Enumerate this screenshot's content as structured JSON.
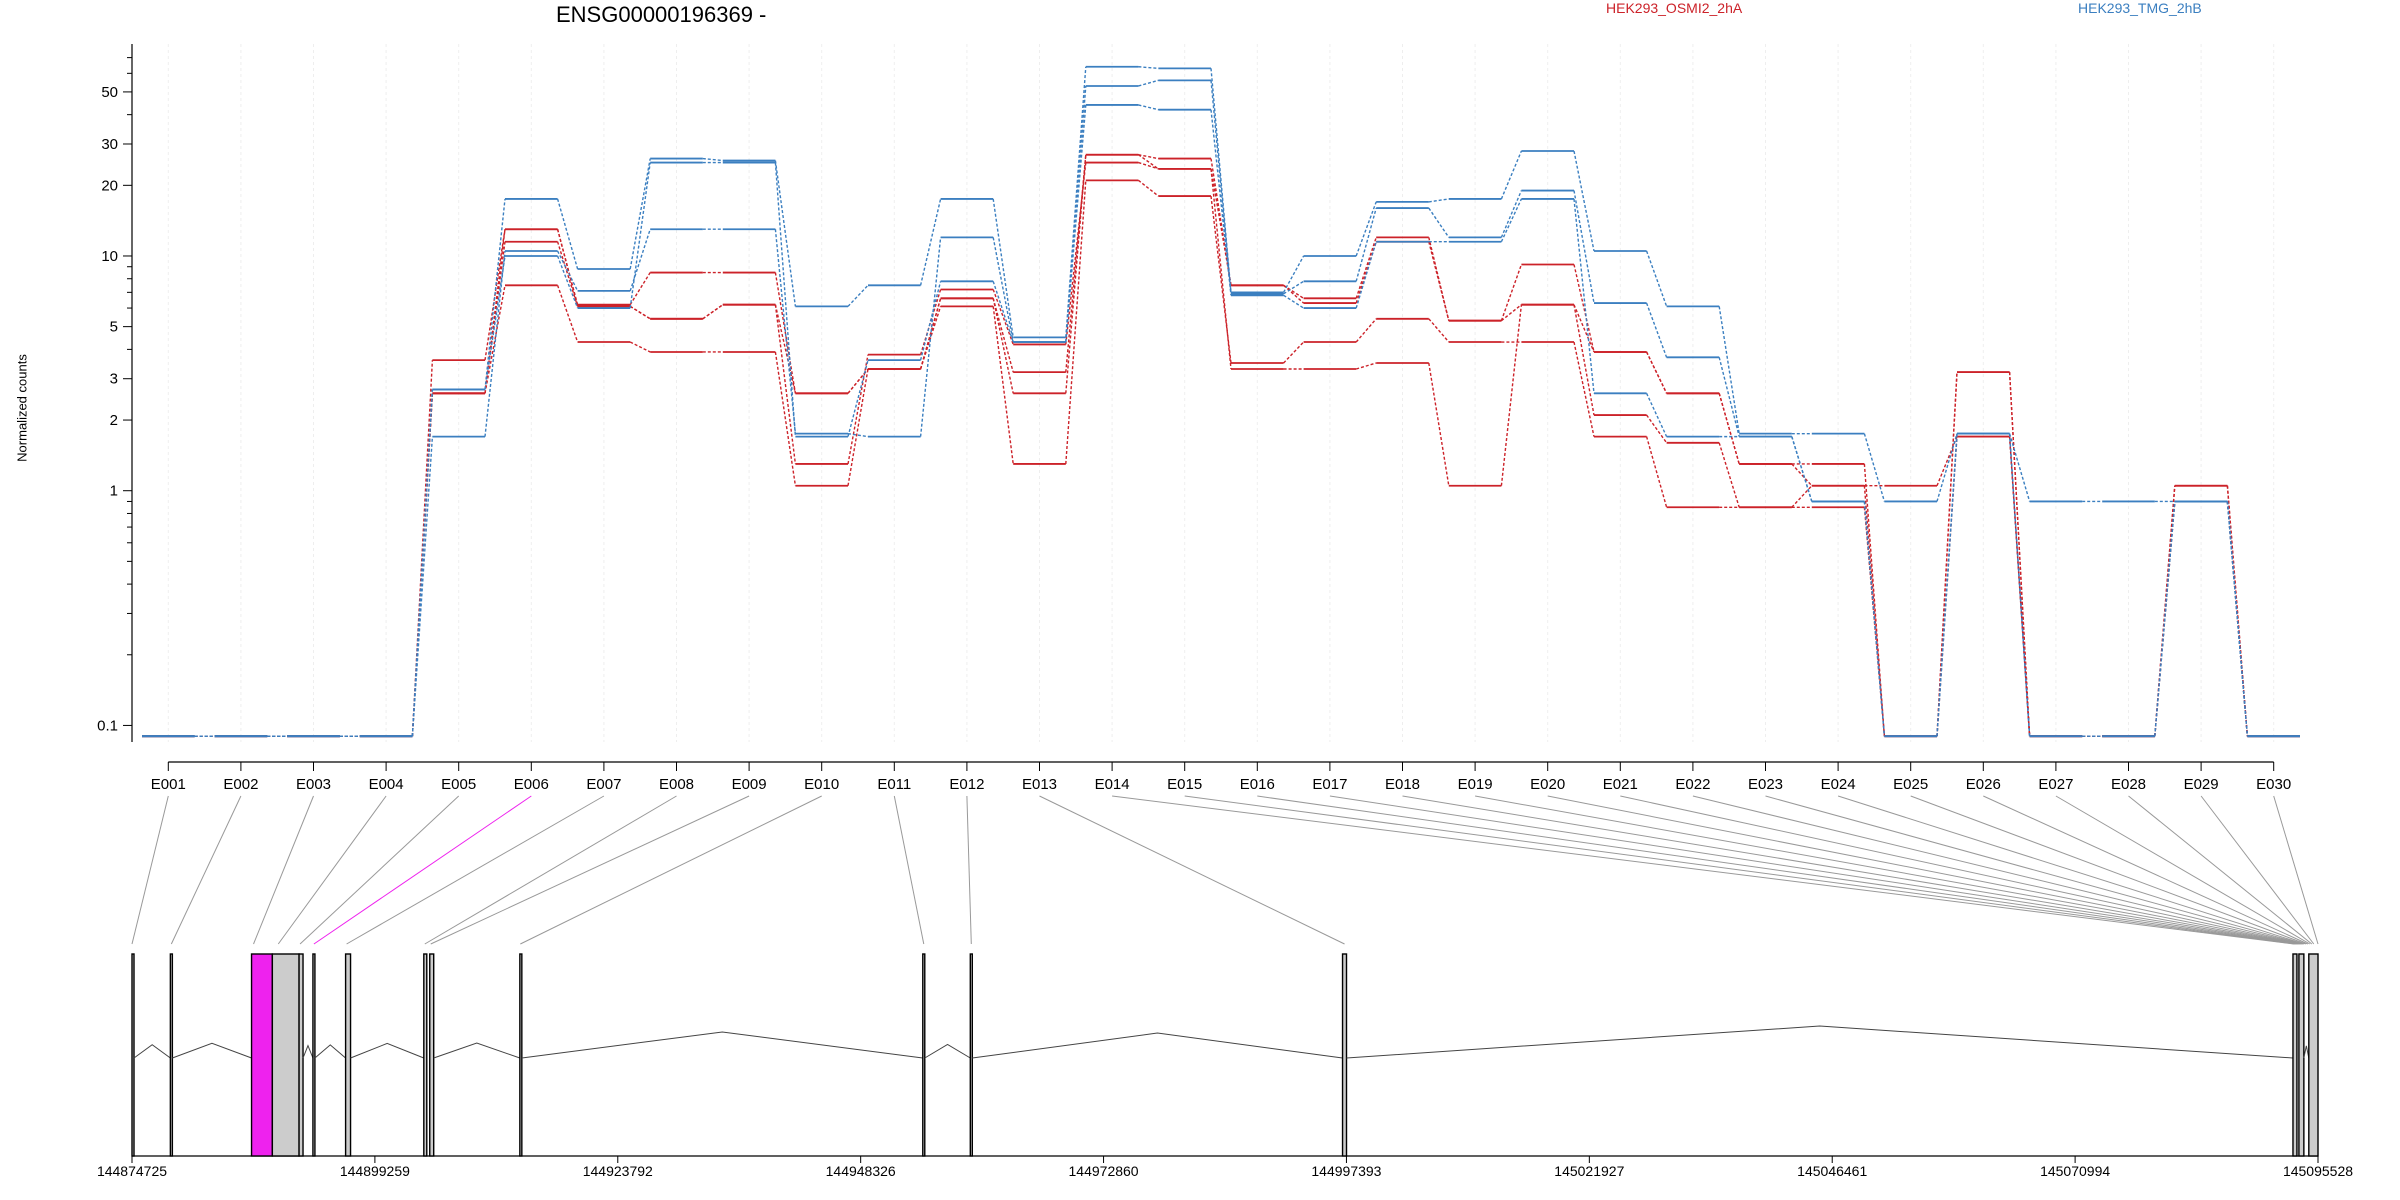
{
  "gene_title": "ENSG00000196369 -",
  "legend": {
    "sample_a": "HEK293_OSMI2_2hA",
    "sample_b": "HEK293_TMG_2hB"
  },
  "colors": {
    "sample_a": "#cc2229",
    "sample_b": "#3b7fc0",
    "highlight_exon": "#ee22ee",
    "exon": "#cccccc"
  },
  "chart_data": {
    "type": "line",
    "ylabel": "Normalized counts",
    "yscale": "log",
    "ylim": [
      0.085,
      80
    ],
    "yticks": [
      0.1,
      1,
      2,
      3,
      5,
      10,
      20,
      30,
      50
    ],
    "ytick_labels": [
      "0.1",
      "1",
      "2",
      "3",
      "5",
      "10",
      "20",
      "30",
      "50"
    ],
    "categories": [
      "E001",
      "E002",
      "E003",
      "E004",
      "E005",
      "E006",
      "E007",
      "E008",
      "E009",
      "E010",
      "E011",
      "E012",
      "E013",
      "E014",
      "E015",
      "E016",
      "E017",
      "E018",
      "E019",
      "E020",
      "E021",
      "E022",
      "E023",
      "E024",
      "E025",
      "E026",
      "E027",
      "E028",
      "E029",
      "E030"
    ],
    "series": [
      {
        "group": "HEK293_OSMI2_2hA",
        "values": [
          0.09,
          0.09,
          0.09,
          0.09,
          3.6,
          13.0,
          6.2,
          8.5,
          8.5,
          2.6,
          3.3,
          6.6,
          3.2,
          27,
          26,
          7.5,
          6.6,
          12,
          5.3,
          9.2,
          3.9,
          2.6,
          1.3,
          1.3,
          0.09,
          3.2,
          0.09,
          0.09,
          1.05,
          0.09
        ]
      },
      {
        "group": "HEK293_OSMI2_2hA",
        "values": [
          0.09,
          0.09,
          0.09,
          0.09,
          2.6,
          11.5,
          6.1,
          5.4,
          6.2,
          1.3,
          3.8,
          7.2,
          4.2,
          25,
          23.5,
          7.5,
          6.3,
          11.5,
          5.3,
          6.2,
          2.1,
          1.6,
          0.85,
          1.05,
          1.05,
          1.7,
          0.09,
          0.09,
          0.9,
          0.09
        ]
      },
      {
        "group": "HEK293_OSMI2_2hA",
        "values": [
          0.09,
          0.09,
          0.09,
          0.09,
          2.6,
          7.5,
          4.3,
          3.9,
          3.9,
          1.05,
          3.3,
          6.1,
          1.3,
          21,
          18,
          3.5,
          4.3,
          5.4,
          4.3,
          4.3,
          1.7,
          0.85,
          0.85,
          0.85,
          0.09,
          1.7,
          0.09,
          0.09,
          0.9,
          0.09
        ]
      },
      {
        "group": "HEK293_OSMI2_2hA",
        "values": [
          0.09,
          0.09,
          0.09,
          0.09,
          2.6,
          13.0,
          6.1,
          5.4,
          6.2,
          2.6,
          3.3,
          6.6,
          2.6,
          27,
          23.5,
          3.3,
          3.3,
          3.5,
          1.05,
          6.2,
          3.9,
          2.6,
          1.3,
          1.05,
          0.09,
          3.2,
          0.09,
          0.09,
          1.05,
          0.09
        ]
      },
      {
        "group": "HEK293_TMG_2hB",
        "values": [
          0.09,
          0.09,
          0.09,
          0.09,
          2.7,
          17.5,
          8.8,
          26,
          25.5,
          6.1,
          7.5,
          17.5,
          4.5,
          64,
          63,
          7.0,
          10.0,
          17,
          17.5,
          28,
          10.5,
          6.1,
          1.75,
          1.75,
          0.9,
          1.75,
          0.9,
          0.9,
          0.9,
          0.09
        ]
      },
      {
        "group": "HEK293_TMG_2hB",
        "values": [
          0.09,
          0.09,
          0.09,
          0.09,
          1.7,
          10.5,
          7.1,
          13,
          13,
          1.75,
          1.7,
          12,
          4.3,
          53,
          56,
          6.9,
          7.8,
          16,
          12,
          19,
          6.3,
          3.7,
          1.7,
          0.9,
          0.09,
          1.75,
          0.09,
          0.09,
          0.9,
          0.09
        ]
      },
      {
        "group": "HEK293_TMG_2hB",
        "values": [
          0.09,
          0.09,
          0.09,
          0.09,
          2.7,
          10.0,
          6.0,
          25,
          25,
          1.7,
          3.6,
          7.8,
          4.3,
          44,
          42,
          6.8,
          6.0,
          11.5,
          11.5,
          17.5,
          2.6,
          1.7,
          1.7,
          0.9,
          0.09,
          1.75,
          0.09,
          0.09,
          0.9,
          0.09
        ]
      }
    ],
    "genome_axis": {
      "range": [
        144874725,
        145095528
      ],
      "tick_labels": [
        "144874725",
        "144899259",
        "144923792",
        "144948326",
        "144972860",
        "144997393",
        "145021927",
        "145046461",
        "145070994",
        "145095528"
      ]
    },
    "exon_blocks": [
      {
        "start": 144874725,
        "end": 144874900
      },
      {
        "start": 144878600,
        "end": 144878800
      },
      {
        "start": 144886800,
        "end": 144888900
      },
      {
        "start": 144888900,
        "end": 144891600
      },
      {
        "start": 144891600,
        "end": 144892000
      },
      {
        "start": 144893000,
        "end": 144893200
      },
      {
        "start": 144896300,
        "end": 144896800
      },
      {
        "start": 144904200,
        "end": 144904500
      },
      {
        "start": 144904800,
        "end": 144905200
      },
      {
        "start": 144913900,
        "end": 144914100
      },
      {
        "start": 144954600,
        "end": 144954800
      },
      {
        "start": 144959400,
        "end": 144959600
      },
      {
        "start": 144997000,
        "end": 144997400
      },
      {
        "start": 145093000,
        "end": 145093400
      },
      {
        "start": 145093600,
        "end": 145094100
      },
      {
        "start": 145094600,
        "end": 145095528
      }
    ]
  }
}
